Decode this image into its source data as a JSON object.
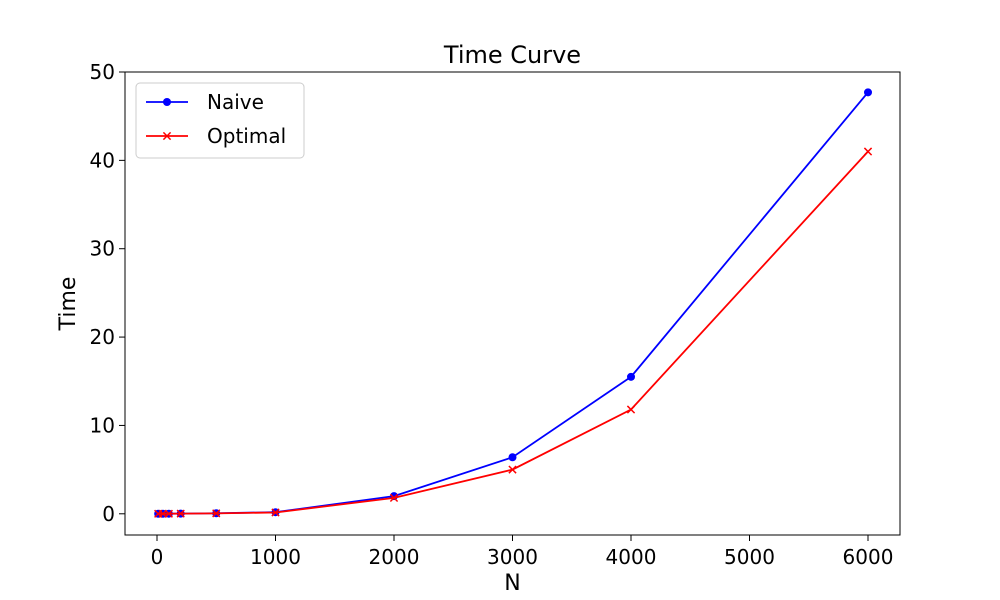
{
  "chart_data": {
    "type": "line",
    "title": "Time Curve",
    "xlabel": "N",
    "ylabel": "Time",
    "xlim": [
      -270,
      6270
    ],
    "ylim": [
      -2.4,
      50
    ],
    "xticks": [
      0,
      1000,
      2000,
      3000,
      4000,
      5000,
      6000
    ],
    "yticks": [
      0,
      10,
      20,
      30,
      40,
      50
    ],
    "grid": false,
    "legend_position": "top-left",
    "series": [
      {
        "name": "Naive",
        "color": "#0000ff",
        "marker": "circle",
        "x": [
          10,
          50,
          100,
          200,
          500,
          1000,
          2000,
          3000,
          4000,
          6000
        ],
        "y": [
          0.0,
          0.0,
          0.01,
          0.02,
          0.06,
          0.18,
          2.0,
          6.4,
          15.5,
          47.7
        ]
      },
      {
        "name": "Optimal",
        "color": "#ff0000",
        "marker": "x",
        "x": [
          10,
          50,
          100,
          200,
          500,
          1000,
          2000,
          3000,
          4000,
          6000
        ],
        "y": [
          0.0,
          0.0,
          0.01,
          0.02,
          0.05,
          0.15,
          1.8,
          5.0,
          11.8,
          41.0
        ]
      }
    ]
  }
}
